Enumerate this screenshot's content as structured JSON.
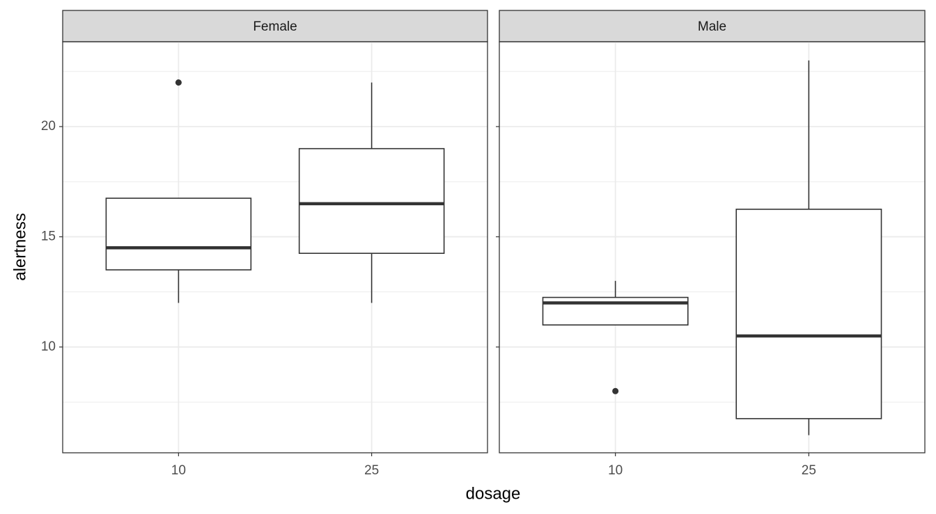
{
  "chart_data": {
    "type": "boxplot",
    "x_label": "dosage",
    "y_label": "alertness",
    "ylim": [
      5.2,
      23.85
    ],
    "yticks": [
      10,
      15,
      20
    ],
    "minor_yticks": [
      7.5,
      12.5,
      17.5,
      22.5
    ],
    "grid": true,
    "color": "#333333",
    "facets": [
      {
        "title": "Female",
        "categories": [
          "10",
          "25"
        ],
        "boxes": [
          {
            "whislo": 12,
            "q1": 13.5,
            "med": 14.5,
            "q3": 16.75,
            "whishi": 16.75,
            "outliers": [
              22
            ]
          },
          {
            "whislo": 12,
            "q1": 14.25,
            "med": 16.5,
            "q3": 19,
            "whishi": 22,
            "outliers": []
          }
        ]
      },
      {
        "title": "Male",
        "categories": [
          "10",
          "25"
        ],
        "boxes": [
          {
            "whislo": 11,
            "q1": 11,
            "med": 12,
            "q3": 12.25,
            "whishi": 13,
            "outliers": [
              8
            ]
          },
          {
            "whislo": 6,
            "q1": 6.75,
            "med": 10.5,
            "q3": 16.25,
            "whishi": 23,
            "outliers": []
          }
        ]
      }
    ]
  }
}
